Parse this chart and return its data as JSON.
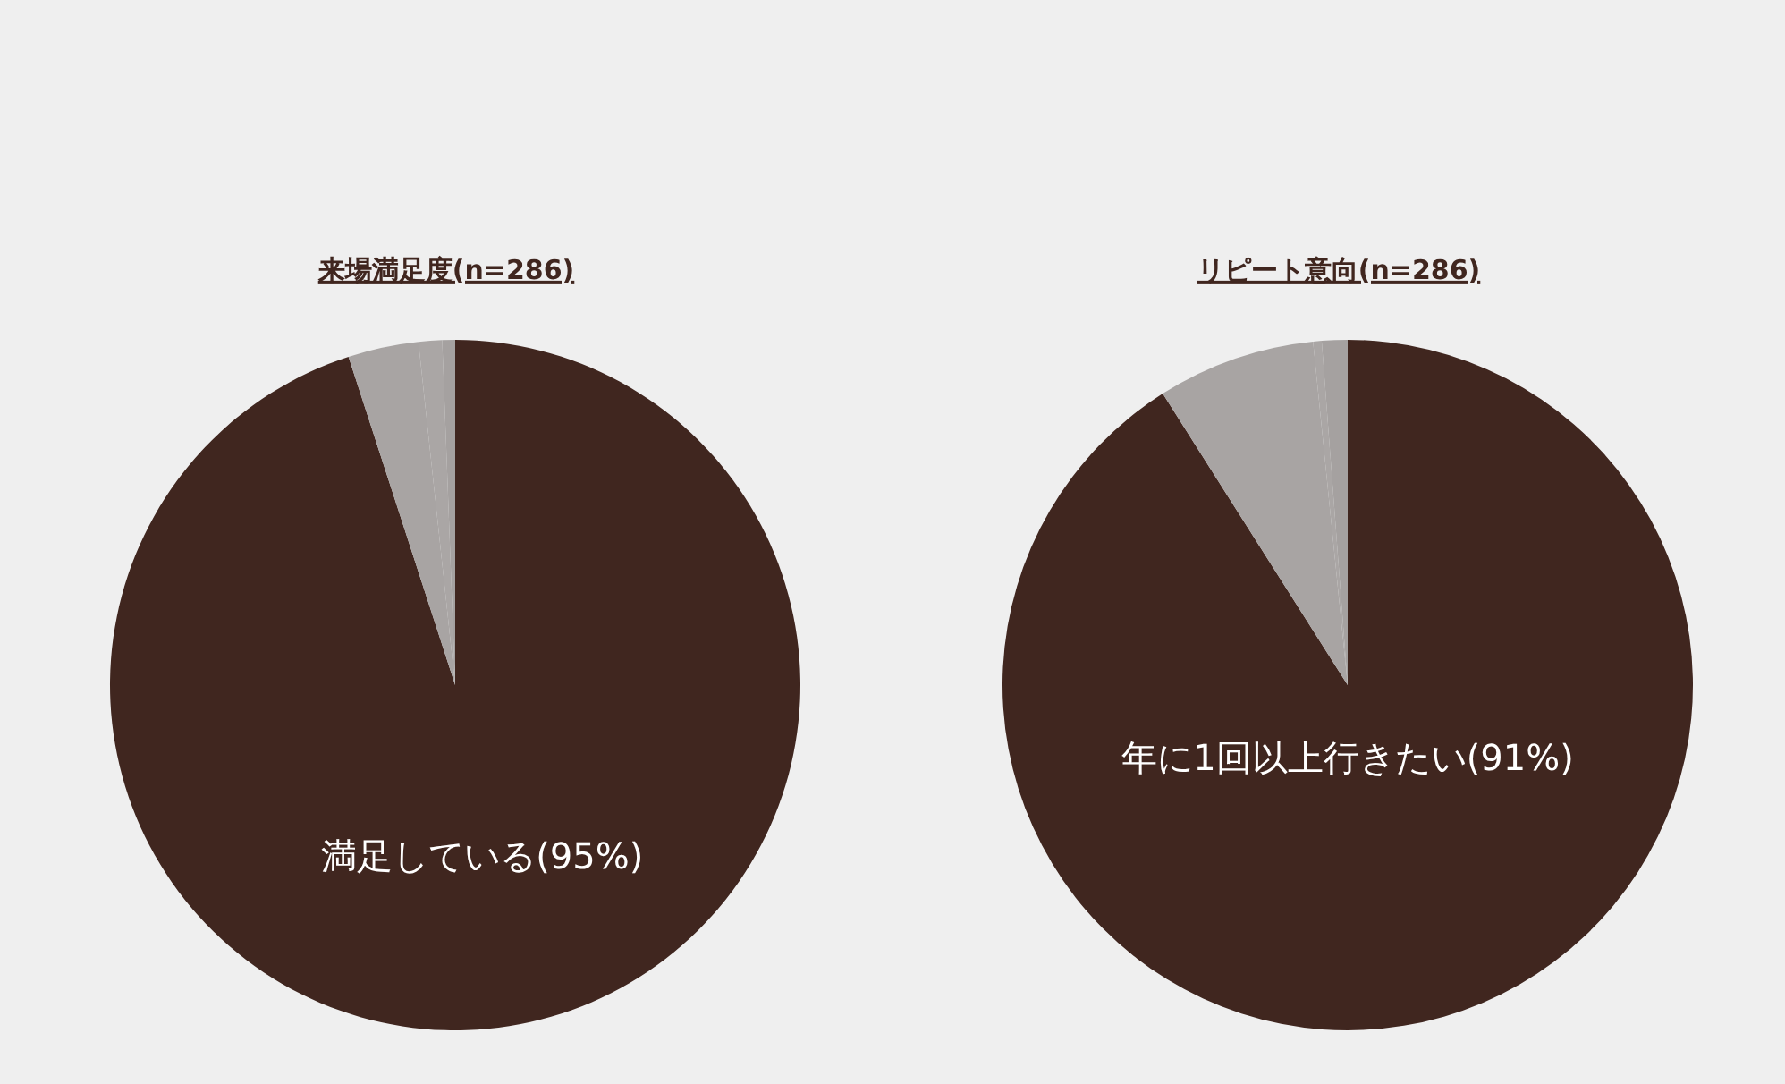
{
  "chart_data": [
    {
      "type": "pie",
      "title": "来場満足度(n=286)",
      "categories": [
        null,
        null,
        null,
        null
      ],
      "values": [
        95,
        3.3,
        1.1,
        0.6
      ],
      "colors": [
        "#40261f",
        "#a8a4a3",
        "#aaa6a5",
        "#a5a1a0"
      ],
      "value_labels": [
        "満足している(95%)",
        null,
        null,
        null
      ],
      "legend": false
    },
    {
      "type": "pie",
      "title": "リピート意向(n=286)",
      "categories": [
        null,
        null,
        null,
        null
      ],
      "values": [
        91,
        7.4,
        0.4,
        1.2
      ],
      "colors": [
        "#40261f",
        "#a8a4a3",
        "#aaa6a5",
        "#a5a1a0"
      ],
      "value_labels": [
        "年に1回以上行きたい(91%)",
        null,
        null,
        null
      ],
      "legend": false
    }
  ]
}
